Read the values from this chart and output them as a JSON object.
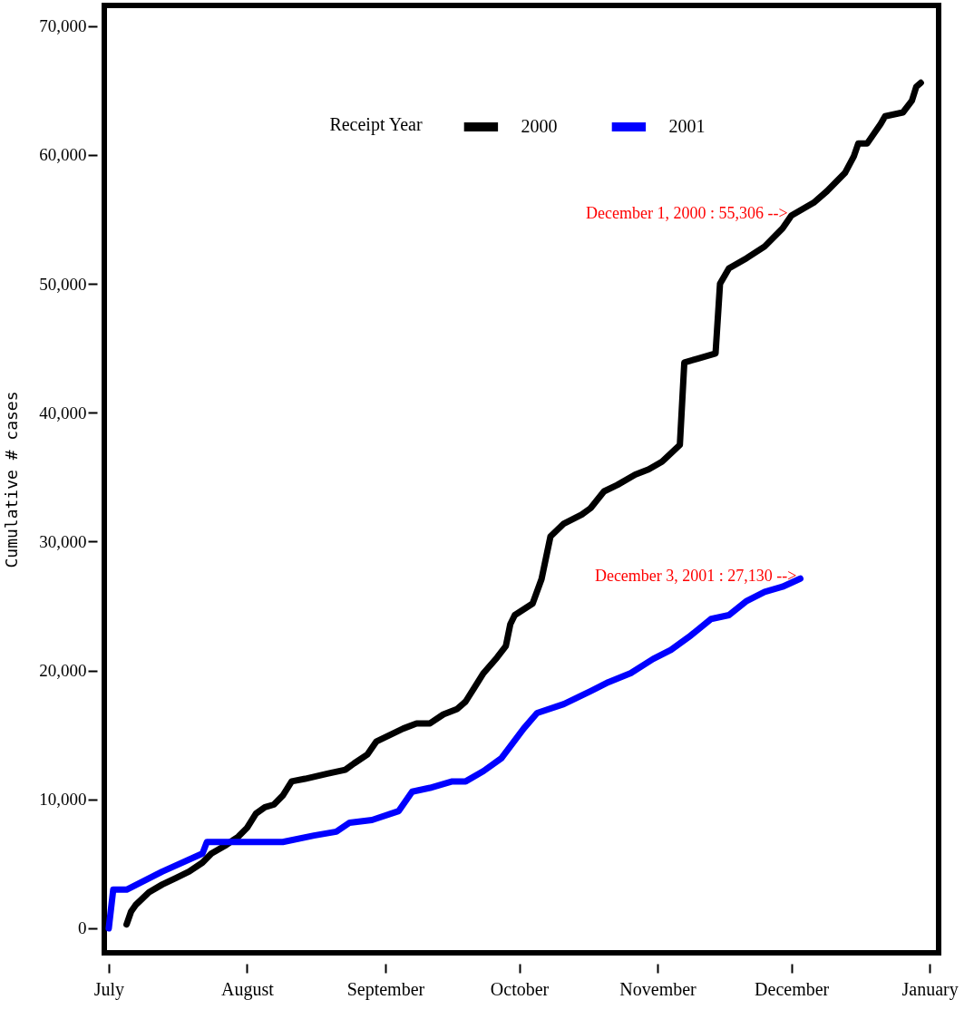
{
  "chart_data": {
    "type": "line",
    "ylabel": "Cumulative # cases",
    "legend_title": "Receipt Year",
    "legend": "top",
    "xlim": [
      "2000-06-30",
      "2001-01-03"
    ],
    "xticks": [
      {
        "value": "2000-07-01",
        "label": "July"
      },
      {
        "value": "2000-08-01",
        "label": "August"
      },
      {
        "value": "2000-09-01",
        "label": "September"
      },
      {
        "value": "2000-10-01",
        "label": "October"
      },
      {
        "value": "2000-11-01",
        "label": "November"
      },
      {
        "value": "2000-12-01",
        "label": "December"
      },
      {
        "value": "2001-01-01",
        "label": "January"
      }
    ],
    "ylim": [
      -1900,
      71600
    ],
    "yticks": [
      {
        "value": 0,
        "label": "0"
      },
      {
        "value": 10000,
        "label": "10,000"
      },
      {
        "value": 20000,
        "label": "20,000"
      },
      {
        "value": 30000,
        "label": "30,000"
      },
      {
        "value": 40000,
        "label": "40,000"
      },
      {
        "value": 50000,
        "label": "50,000"
      },
      {
        "value": 60000,
        "label": "60,000"
      },
      {
        "value": 70000,
        "label": "70,000"
      }
    ],
    "series": [
      {
        "name": "2000",
        "color": "#000000",
        "x": [
          "2000-07-05",
          "2000-07-06",
          "2000-07-07",
          "2000-07-10",
          "2000-07-13",
          "2000-07-16",
          "2000-07-19",
          "2000-07-22",
          "2000-07-24",
          "2000-07-27",
          "2000-07-30",
          "2000-08-01",
          "2000-08-03",
          "2000-08-05",
          "2000-08-07",
          "2000-08-09",
          "2000-08-11",
          "2000-08-14",
          "2000-08-19",
          "2000-08-23",
          "2000-08-25",
          "2000-08-28",
          "2000-08-30",
          "2000-09-05",
          "2000-09-08",
          "2000-09-11",
          "2000-09-14",
          "2000-09-17",
          "2000-09-19",
          "2000-09-21",
          "2000-09-23",
          "2000-09-26",
          "2000-09-28",
          "2000-09-29",
          "2000-09-30",
          "2000-10-04",
          "2000-10-06",
          "2000-10-08",
          "2000-10-11",
          "2000-10-15",
          "2000-10-17",
          "2000-10-20",
          "2000-10-23",
          "2000-10-27",
          "2000-10-30",
          "2000-11-02",
          "2000-11-06",
          "2000-11-07",
          "2000-11-10",
          "2000-11-14",
          "2000-11-15",
          "2000-11-17",
          "2000-11-21",
          "2000-11-25",
          "2000-11-29",
          "2000-12-01",
          "2000-12-06",
          "2000-12-09",
          "2000-12-13",
          "2000-12-15",
          "2000-12-16",
          "2000-12-18",
          "2000-12-21",
          "2000-12-22",
          "2000-12-26",
          "2000-12-28",
          "2000-12-29",
          "2000-12-30"
        ],
        "values": [
          300,
          1300,
          1800,
          2800,
          3400,
          3900,
          4400,
          5100,
          5800,
          6400,
          7100,
          7800,
          8900,
          9400,
          9600,
          10300,
          11400,
          11600,
          12000,
          12300,
          12800,
          13500,
          14500,
          15500,
          15900,
          15900,
          16600,
          17000,
          17600,
          18700,
          19800,
          21000,
          21900,
          23600,
          24300,
          25200,
          27100,
          30400,
          31400,
          32100,
          32600,
          33900,
          34400,
          35200,
          35600,
          36200,
          37500,
          43900,
          44200,
          44600,
          50000,
          51200,
          52000,
          52900,
          54300,
          55306,
          56300,
          57200,
          58600,
          59900,
          60900,
          60900,
          62400,
          63000,
          63300,
          64200,
          65300,
          65600
        ]
      },
      {
        "name": "2001",
        "color": "#0000ff",
        "x": [
          "2000-07-01",
          "2000-07-02",
          "2000-07-05",
          "2000-07-13",
          "2000-07-22",
          "2000-07-23",
          "2000-08-09",
          "2000-08-16",
          "2000-08-21",
          "2000-08-24",
          "2000-08-29",
          "2000-09-04",
          "2000-09-07",
          "2000-09-11",
          "2000-09-16",
          "2000-09-19",
          "2000-09-23",
          "2000-09-27",
          "2000-10-02",
          "2000-10-05",
          "2000-10-11",
          "2000-10-17",
          "2000-10-21",
          "2000-10-26",
          "2000-10-31",
          "2000-11-04",
          "2000-11-08",
          "2000-11-13",
          "2000-11-17",
          "2000-11-21",
          "2000-11-25",
          "2000-11-29",
          "2000-12-03"
        ],
        "values": [
          0,
          3000,
          3000,
          4400,
          5800,
          6700,
          6700,
          7200,
          7500,
          8200,
          8400,
          9100,
          10600,
          10900,
          11400,
          11400,
          12200,
          13200,
          15500,
          16700,
          17400,
          18400,
          19100,
          19800,
          20900,
          21600,
          22600,
          24000,
          24300,
          25400,
          26100,
          26500,
          27130
        ]
      }
    ],
    "annotations": [
      {
        "text": "December 1, 2000 : 55,306 -->",
        "x": "2000-12-01",
        "y": 55306
      },
      {
        "text": "December 3, 2001 : 27,130 -->",
        "x": "2000-12-03",
        "y": 27130
      }
    ],
    "grid": false,
    "line_style": "solid",
    "marker": "none"
  }
}
